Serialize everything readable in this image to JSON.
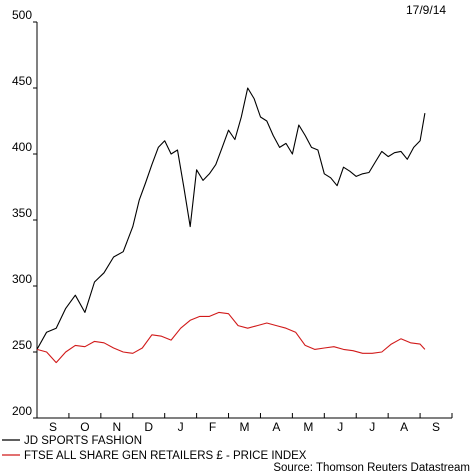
{
  "chart_data": {
    "type": "line",
    "date_label": "17/9/14",
    "source": "Source: Thomson Reuters Datastream",
    "y_ticks": [
      200,
      250,
      300,
      350,
      400,
      450,
      500
    ],
    "ylim": [
      200,
      500
    ],
    "x_tick_labels": [
      "S",
      "O",
      "N",
      "D",
      "J",
      "F",
      "M",
      "A",
      "M",
      "J",
      "J",
      "A",
      "S"
    ],
    "legend_position": "bottom-left",
    "grid": false,
    "series": [
      {
        "name": "JD SPORTS FASHION",
        "color": "#000000",
        "x": [
          0,
          0.3,
          0.6,
          0.9,
          1.2,
          1.5,
          1.8,
          2.1,
          2.4,
          2.7,
          3.0,
          3.2,
          3.4,
          3.6,
          3.8,
          4.0,
          4.2,
          4.4,
          4.6,
          4.8,
          5.0,
          5.2,
          5.4,
          5.6,
          5.8,
          6.0,
          6.2,
          6.4,
          6.6,
          6.8,
          7.0,
          7.2,
          7.4,
          7.6,
          7.8,
          8.0,
          8.2,
          8.4,
          8.6,
          8.8,
          9.0,
          9.2,
          9.4,
          9.6,
          9.8,
          10.0,
          10.2,
          10.4,
          10.6,
          10.8,
          11.0,
          11.2,
          11.4,
          11.6,
          11.8,
          12.0,
          12.15
        ],
        "y": [
          252,
          265,
          268,
          283,
          293,
          280,
          303,
          310,
          322,
          326,
          345,
          365,
          378,
          392,
          405,
          410,
          400,
          403,
          375,
          345,
          388,
          380,
          385,
          392,
          405,
          418,
          411,
          428,
          450,
          442,
          428,
          425,
          414,
          405,
          408,
          400,
          422,
          414,
          405,
          403,
          385,
          382,
          376,
          390,
          387,
          383,
          385,
          386,
          394,
          402,
          398,
          401,
          402,
          396,
          405,
          410,
          431
        ]
      },
      {
        "name": "FTSE ALL SHARE GEN RETAILERS £ - PRICE INDEX",
        "color": "#d11a1a",
        "x": [
          0,
          0.3,
          0.6,
          0.9,
          1.2,
          1.5,
          1.8,
          2.1,
          2.4,
          2.7,
          3.0,
          3.3,
          3.6,
          3.9,
          4.2,
          4.5,
          4.8,
          5.1,
          5.4,
          5.7,
          6.0,
          6.3,
          6.6,
          6.9,
          7.2,
          7.5,
          7.8,
          8.1,
          8.4,
          8.7,
          9.0,
          9.3,
          9.6,
          9.9,
          10.2,
          10.5,
          10.8,
          11.1,
          11.4,
          11.7,
          12.0,
          12.15
        ],
        "y": [
          252,
          250,
          242,
          250,
          255,
          254,
          258,
          257,
          253,
          250,
          249,
          253,
          263,
          262,
          259,
          268,
          274,
          277,
          277,
          280,
          279,
          270,
          268,
          270,
          272,
          270,
          268,
          265,
          255,
          252,
          253,
          254,
          252,
          251,
          249,
          249,
          250,
          256,
          260,
          257,
          256,
          252
        ]
      }
    ]
  }
}
